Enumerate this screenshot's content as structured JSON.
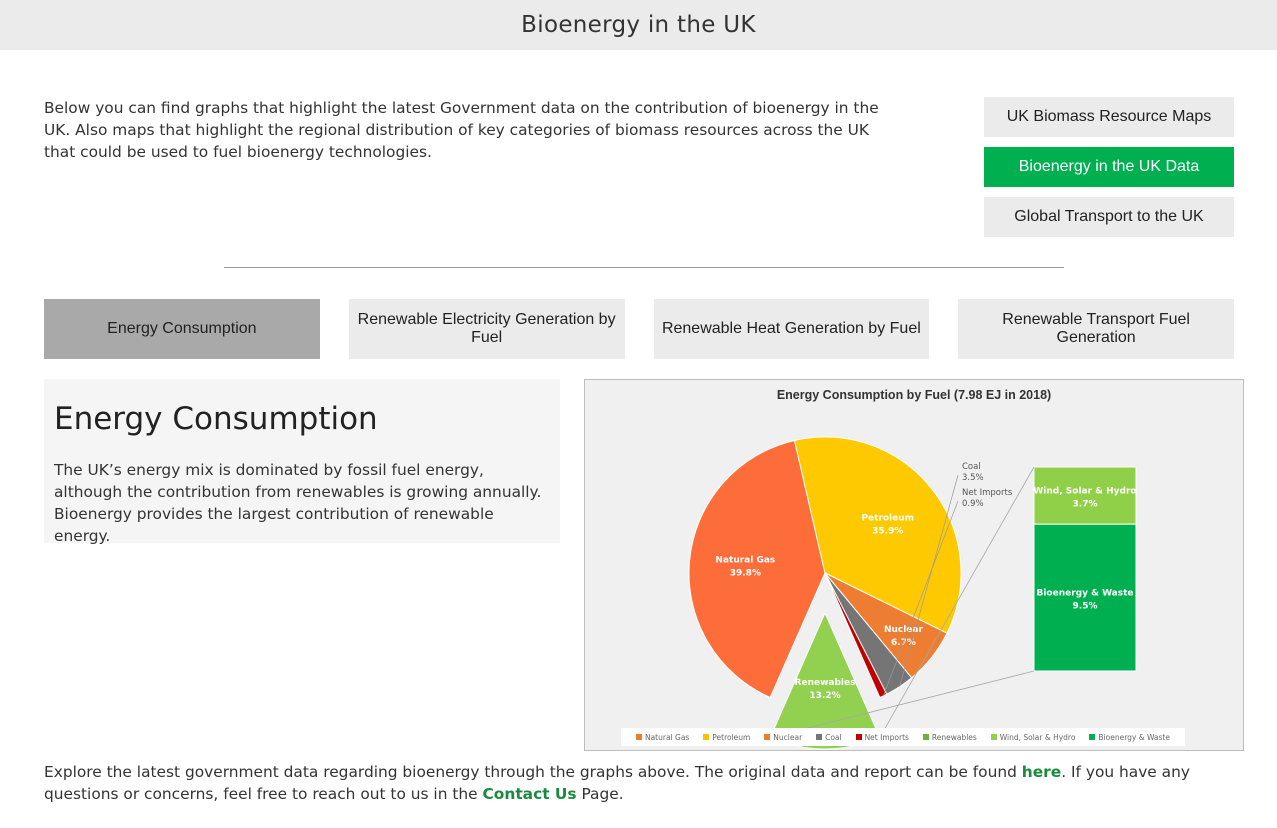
{
  "header": {
    "title": "Bioenergy in the UK"
  },
  "intro": "Below you can find graphs that highlight the latest Government data on the contribution of bioenergy in the UK. Also maps that highlight the regional distribution of key categories of biomass resources across the UK that could be used to fuel bioenergy technologies.",
  "side_nav": {
    "items": [
      {
        "label": "UK Biomass Resource Maps"
      },
      {
        "label": "Bioenergy in the UK Data",
        "active": true
      },
      {
        "label": "Global Transport to the UK"
      }
    ]
  },
  "tabs": [
    {
      "label": "Energy Consumption",
      "active": true
    },
    {
      "label": "Renewable Electricity Generation by Fuel"
    },
    {
      "label": "Renewable Heat Generation by Fuel"
    },
    {
      "label": "Renewable Transport Fuel Generation"
    }
  ],
  "info": {
    "heading": "Energy Consumption",
    "body": "The UK’s energy mix is dominated by fossil fuel energy, although the contribution from renewables is growing annually. Bioenergy provides the largest contribution of renewable energy."
  },
  "chart_data": {
    "type": "pie",
    "title": "Energy Consumption by Fuel (7.98 EJ in 2018)",
    "slices": [
      {
        "name": "Natural Gas",
        "label": "Natural Gas",
        "pct_label": "39.8%",
        "value": 39.8,
        "color": "#fd6d3a"
      },
      {
        "name": "Petroleum",
        "label": "Petroleum",
        "pct_label": "35.9%",
        "value": 35.9,
        "color": "#ffc900"
      },
      {
        "name": "Nuclear",
        "label": "Nuclear",
        "pct_label": "6.7%",
        "value": 6.7,
        "color": "#ed7d31"
      },
      {
        "name": "Coal",
        "label": "Coal",
        "pct_label": "3.5%",
        "value": 3.5,
        "color": "#757575"
      },
      {
        "name": "Net Imports",
        "label": "Net Imports",
        "pct_label": "0.9%",
        "value": 0.9,
        "color": "#c00000"
      },
      {
        "name": "Renewables",
        "label": "Renewables",
        "pct_label": "13.2%",
        "value": 13.2,
        "color": "#92d050"
      }
    ],
    "breakdown": {
      "of": "Renewables",
      "segments": [
        {
          "name": "Wind, Solar & Hydro",
          "label": "Wind, Solar & Hydro",
          "pct_label": "3.7%",
          "value": 3.7,
          "color": "#8fd048"
        },
        {
          "name": "Bioenergy & Waste",
          "label": "Bioenergy & Waste",
          "pct_label": "9.5%",
          "value": 9.5,
          "color": "#00b050"
        }
      ]
    },
    "legend": [
      {
        "label": "Natural Gas",
        "color": "#ed7d31"
      },
      {
        "label": "Petroleum",
        "color": "#ffc000"
      },
      {
        "label": "Nuclear",
        "color": "#ed7d31"
      },
      {
        "label": "Coal",
        "color": "#757575"
      },
      {
        "label": "Net Imports",
        "color": "#c00000"
      },
      {
        "label": "Renewables",
        "color": "#70ad47"
      },
      {
        "label": "Wind, Solar & Hydro",
        "color": "#92d050"
      },
      {
        "label": "Bioenergy & Waste",
        "color": "#00b050"
      }
    ],
    "legend_position": "bottom"
  },
  "footer": {
    "text1": "Explore the latest government data regarding bioenergy through the graphs above. The original data and report can be found ",
    "link1": "here",
    "text2": ". If you have any questions or concerns, feel free to reach out to us in the ",
    "link2": "Contact Us",
    "text3": " Page."
  }
}
